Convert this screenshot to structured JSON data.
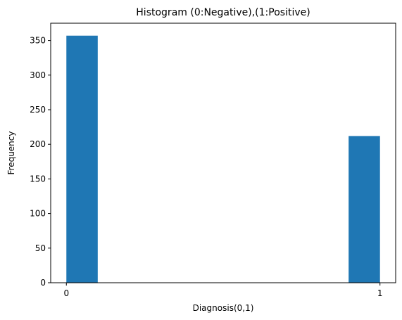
{
  "chart_data": {
    "type": "bar",
    "title": "Histogram (0:Negative),(1:Positive)",
    "xlabel": "Diagnosis(0,1)",
    "ylabel": "Frequency",
    "bins": [
      {
        "x_start": 0.0,
        "x_end": 0.1,
        "value": 357
      },
      {
        "x_start": 0.9,
        "x_end": 1.0,
        "value": 212
      }
    ],
    "xlim": [
      -0.05,
      1.05
    ],
    "ylim": [
      0,
      375
    ],
    "xticks": [
      0,
      1
    ],
    "yticks": [
      0,
      50,
      100,
      150,
      200,
      250,
      300,
      350
    ],
    "bar_color": "#1f77b4",
    "grid": false,
    "legend": false
  }
}
